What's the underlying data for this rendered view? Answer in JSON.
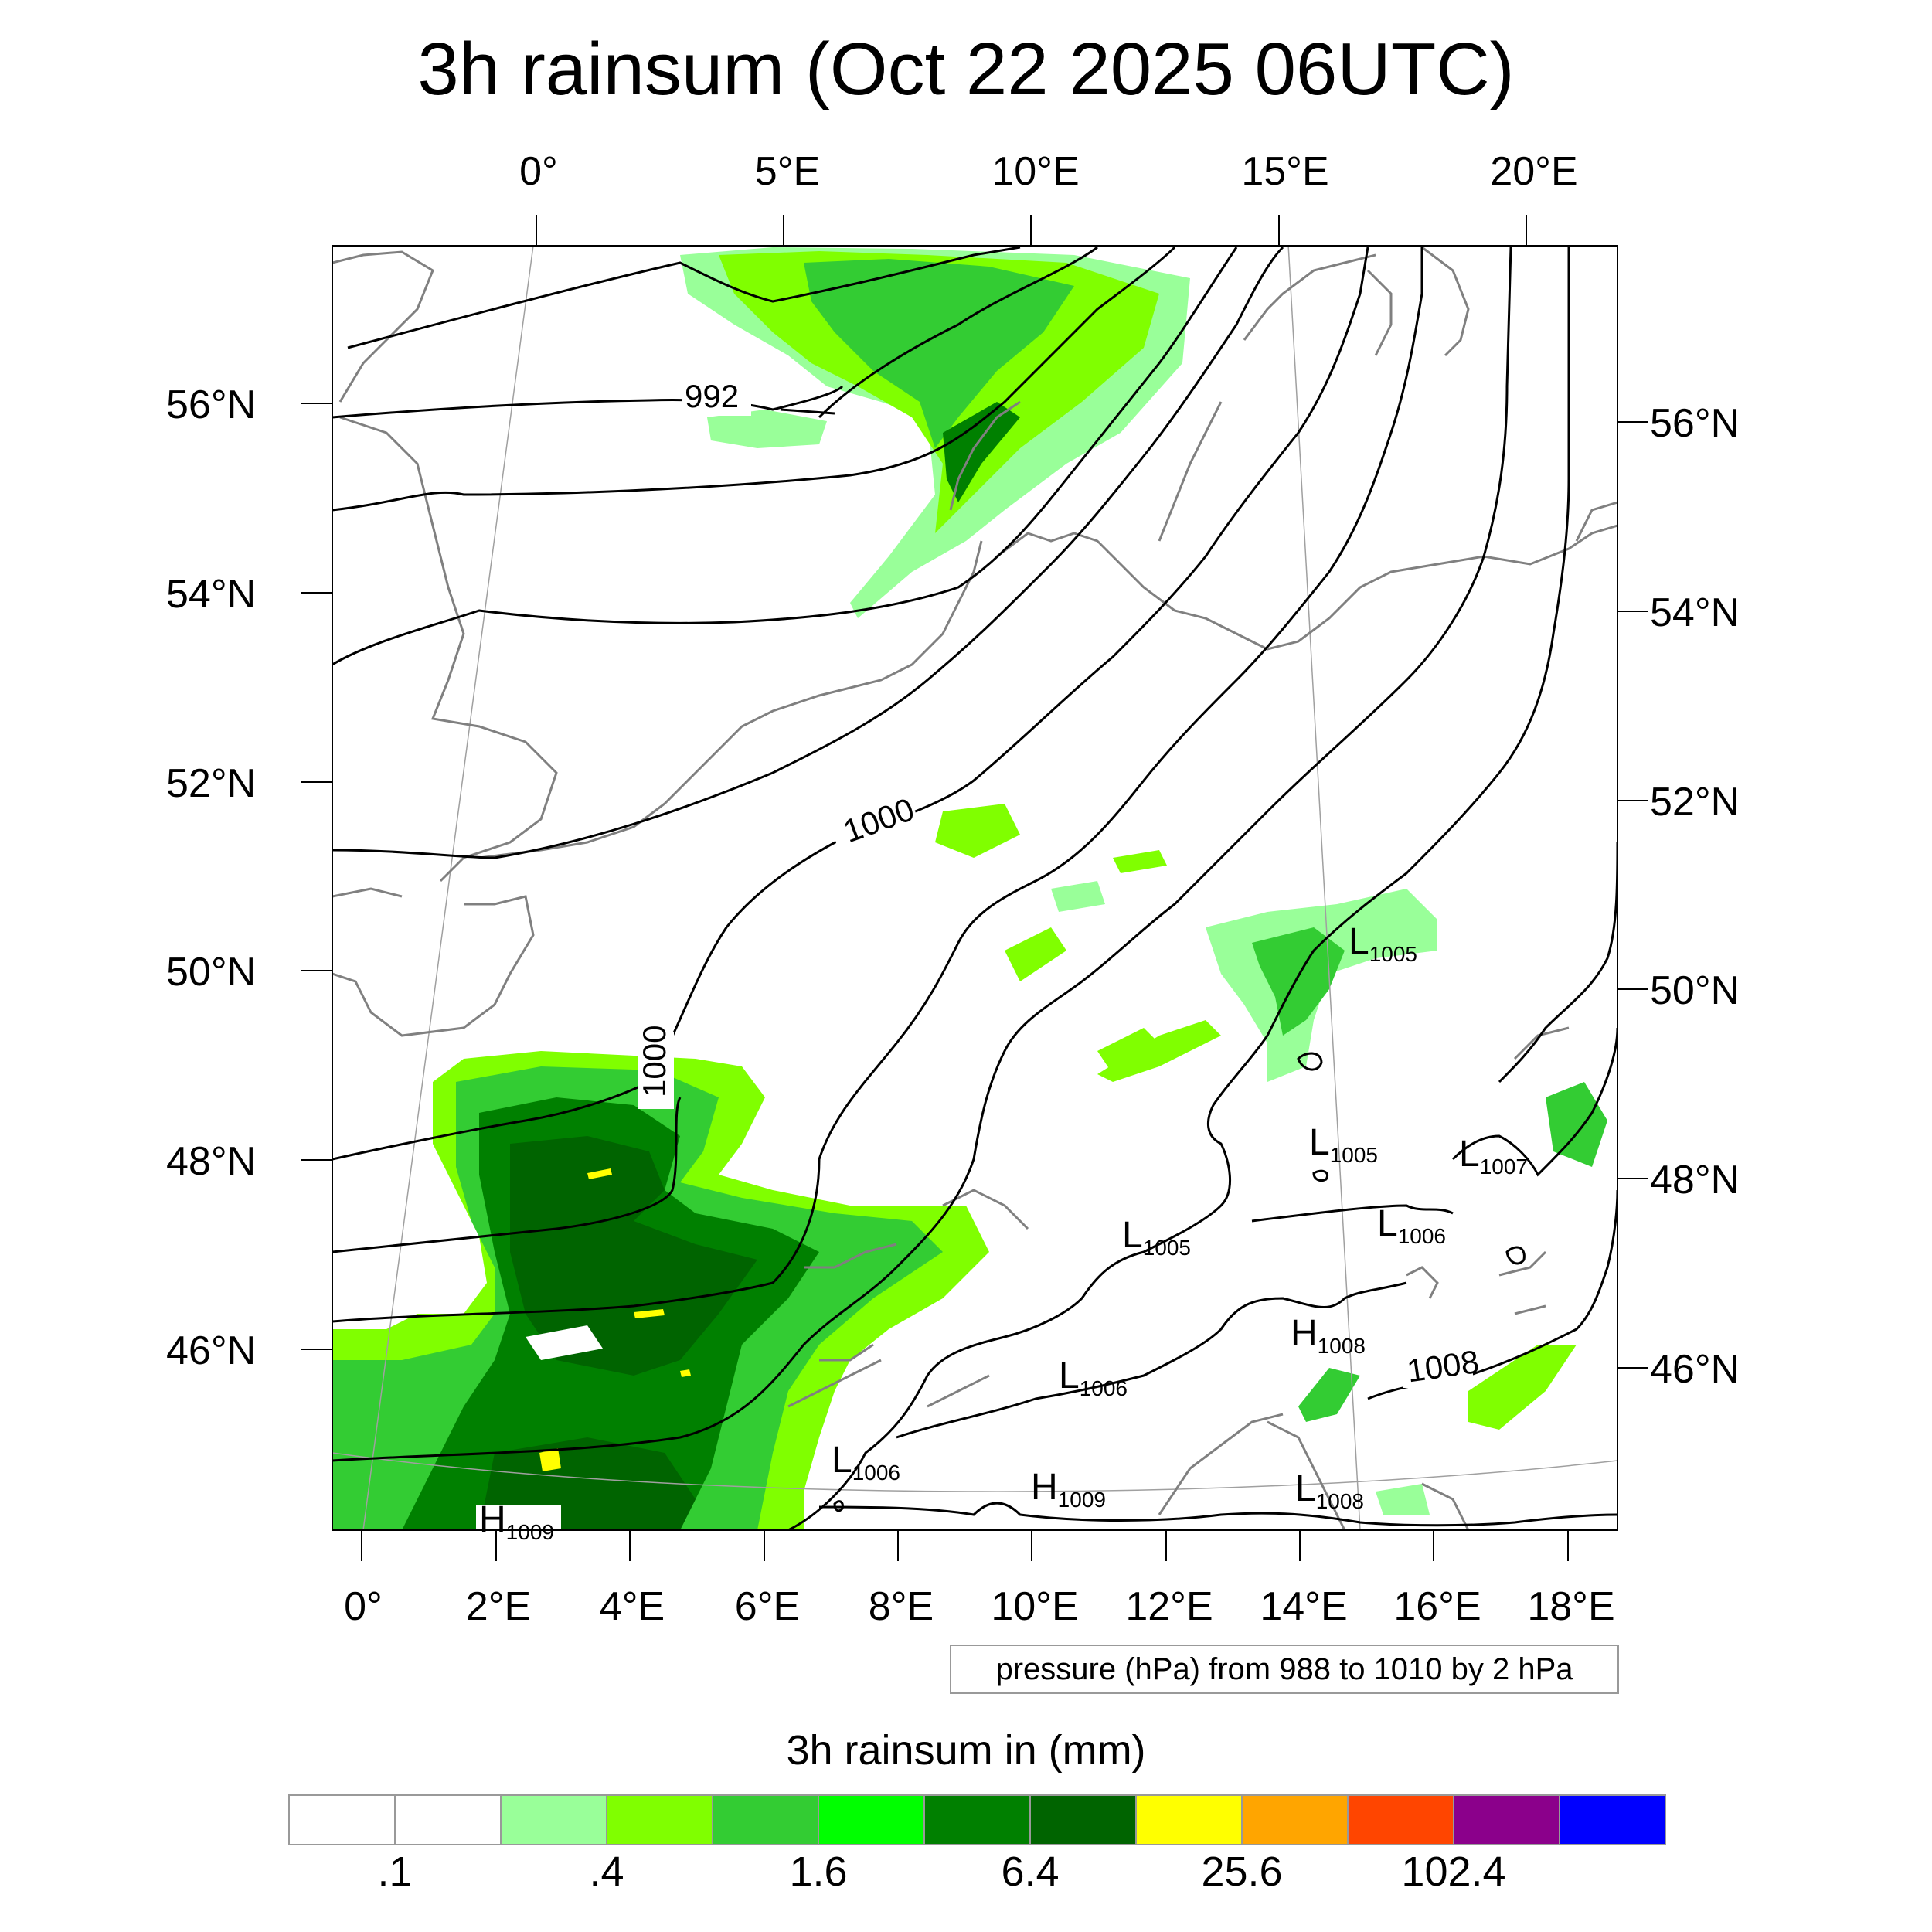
{
  "title": "3h rainsum (Oct 22 2025 06UTC)",
  "map": {
    "top_lon_labels": [
      "0°",
      "5°E",
      "10°E",
      "15°E",
      "20°E"
    ],
    "bottom_lon_labels": [
      "0°",
      "2°E",
      "4°E",
      "6°E",
      "8°E",
      "10°E",
      "12°E",
      "14°E",
      "16°E",
      "18°E"
    ],
    "left_lat_labels": [
      "56°N",
      "54°N",
      "52°N",
      "50°N",
      "48°N",
      "46°N"
    ],
    "right_lat_labels": [
      "56°N",
      "54°N",
      "52°N",
      "50°N",
      "48°N",
      "46°N"
    ],
    "isobar_labels": [
      "992",
      "1000",
      "1000",
      "1008"
    ],
    "pressure_markers": [
      {
        "symbol": "L",
        "value": "1005"
      },
      {
        "symbol": "L",
        "value": "1005"
      },
      {
        "symbol": "L",
        "value": "1007"
      },
      {
        "symbol": "L",
        "value": "1005"
      },
      {
        "symbol": "L",
        "value": "1006"
      },
      {
        "symbol": "H",
        "value": "1008"
      },
      {
        "symbol": "L",
        "value": "1006"
      },
      {
        "symbol": "L",
        "value": "1006"
      },
      {
        "symbol": "H",
        "value": "1009"
      },
      {
        "symbol": "L",
        "value": "1008"
      },
      {
        "symbol": "H",
        "value": "1009"
      }
    ],
    "pressure_note": "pressure (hPa) from 988 to 1010 by 2 hPa",
    "colors": {
      "land_border": "#808080",
      "isobar": "#000000",
      "graticule": "#a0a0a0"
    }
  },
  "colorbar": {
    "title": "3h rainsum in (mm)",
    "colors": [
      "#ffffff",
      "#ffffff",
      "#99ff99",
      "#80ff00",
      "#33cc33",
      "#00ff00",
      "#008000",
      "#006400",
      "#ffff00",
      "#ffa500",
      "#ff4500",
      "#8b008b",
      "#0000ff"
    ],
    "labels": [
      ".1",
      ".4",
      "1.6",
      "6.4",
      "25.6",
      "102.4"
    ]
  }
}
